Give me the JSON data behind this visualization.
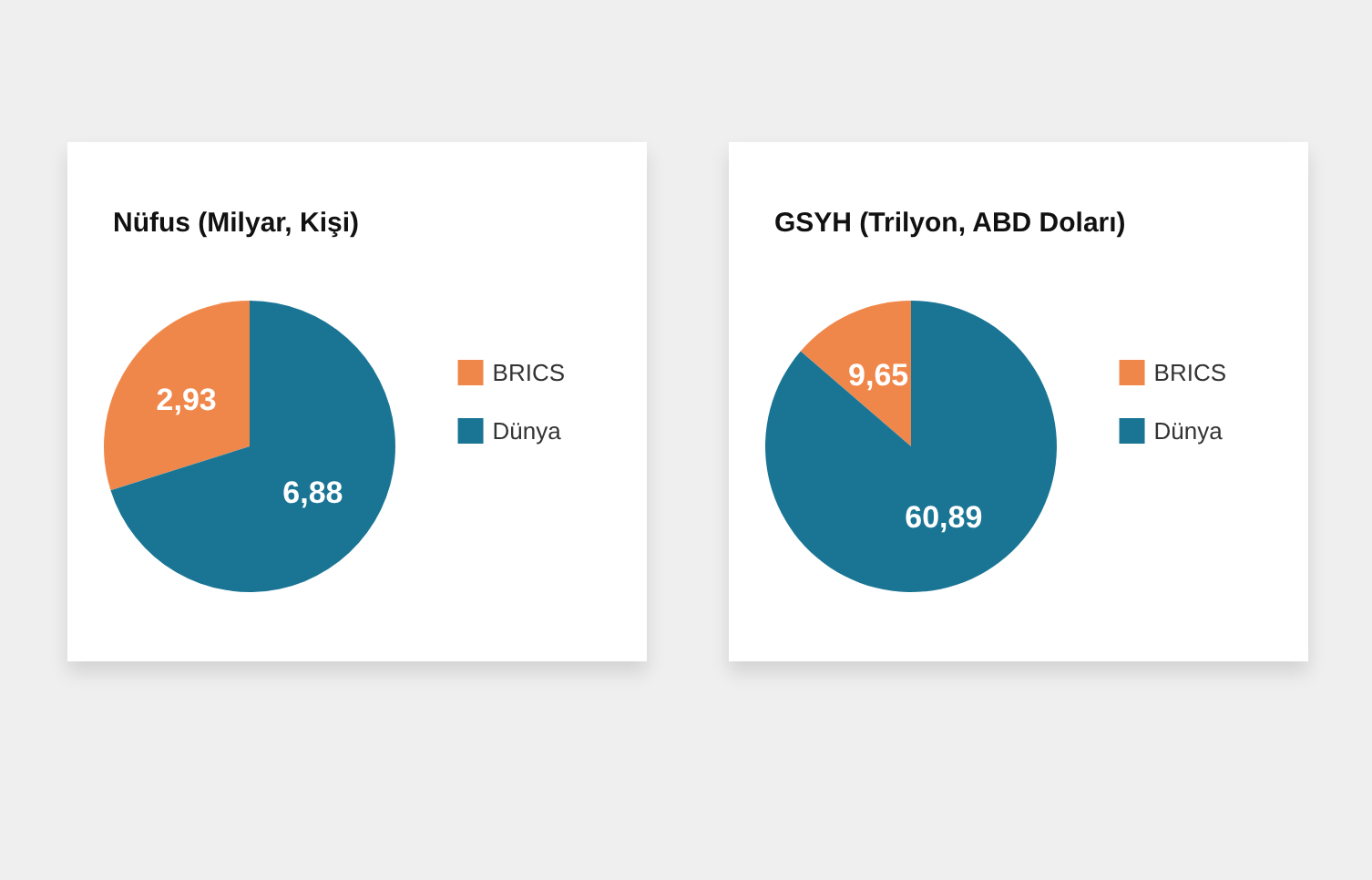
{
  "chart_data": [
    {
      "type": "pie",
      "title": "Nüfus (Milyar, Kişi)",
      "categories": [
        "BRICS",
        "Dünya"
      ],
      "values": [
        2.93,
        6.88
      ],
      "value_labels": [
        "2,93",
        "6,88"
      ],
      "colors": [
        "#f0874a",
        "#1a7595"
      ],
      "legend": "right"
    },
    {
      "type": "pie",
      "title": "GSYH (Trilyon, ABD Doları)",
      "categories": [
        "BRICS",
        "Dünya"
      ],
      "values": [
        9.65,
        60.89
      ],
      "value_labels": [
        "9,65",
        "60,89"
      ],
      "colors": [
        "#f0874a",
        "#1a7595"
      ],
      "legend": "right"
    }
  ]
}
